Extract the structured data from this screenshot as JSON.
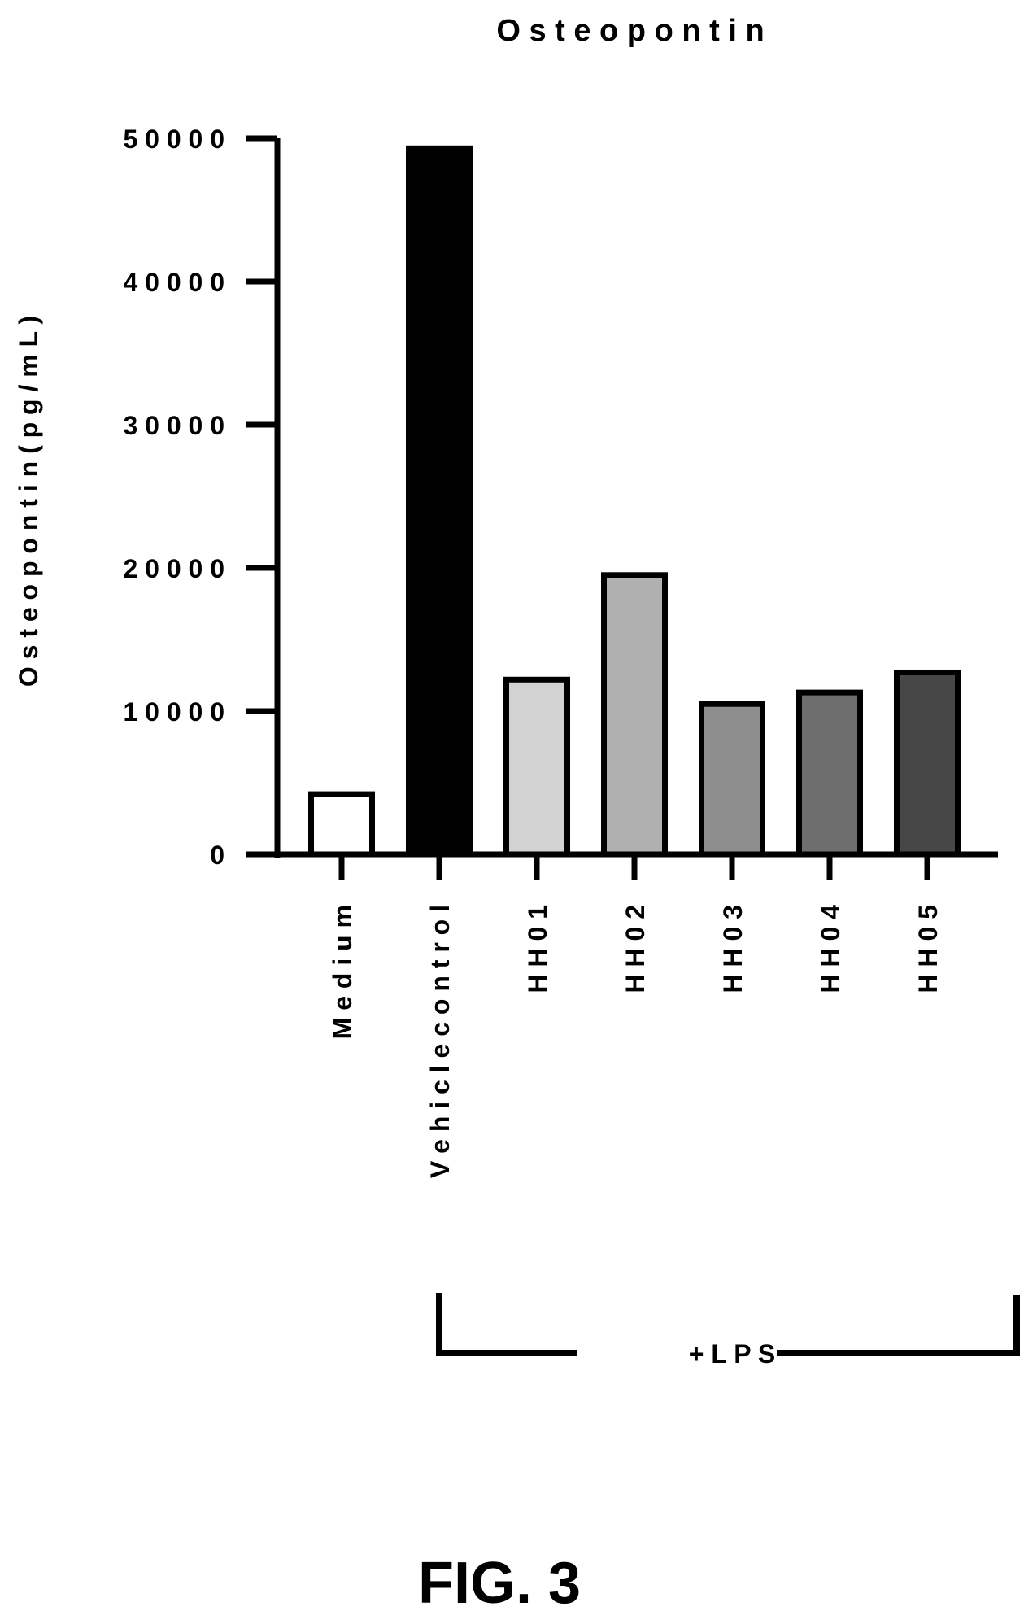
{
  "figure_label": "FIG. 3",
  "chart_data": {
    "type": "bar",
    "title": "O s t e o p o n t i n",
    "ylabel": "O s t e o p o n t i n   ( p g / m L )",
    "xlabel": "",
    "ylim": [
      0,
      50000
    ],
    "yticks": [
      0,
      10000,
      20000,
      30000,
      40000,
      50000
    ],
    "ytick_labels": [
      "0",
      "1 0 0 0 0",
      "2 0 0 0 0",
      "3 0 0 0 0",
      "4 0 0 0 0",
      "5 0 0 0 0"
    ],
    "categories": [
      "M e d i u m",
      "V e h i c l e   c o n t r o l",
      "H H 0 1",
      "H H 0 2",
      "H H 0 3",
      "H H 0 4",
      "H H 0 5"
    ],
    "values": [
      4200,
      49300,
      12200,
      19500,
      10500,
      11300,
      12700
    ],
    "bar_colors": [
      "#ffffff",
      "#000000",
      "#d2d2d2",
      "#b0b0b0",
      "#8e8e8e",
      "#6e6e6e",
      "#474747"
    ],
    "grid": false,
    "annotations": [
      {
        "text": "+ L P S",
        "spans": [
          "V e h i c l e   c o n t r o l",
          "H H 0 5"
        ]
      }
    ]
  }
}
